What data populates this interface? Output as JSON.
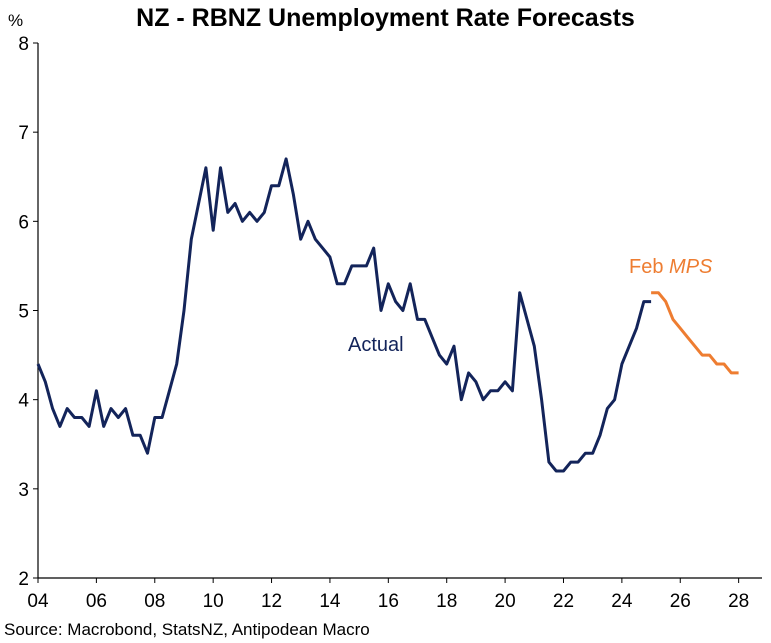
{
  "chart_data": {
    "type": "line",
    "title": "NZ - RBNZ Unemployment Rate Forecasts",
    "ylabel": "%",
    "xlabel": "",
    "ylim": [
      2,
      8
    ],
    "xlim": [
      2004,
      2028.8
    ],
    "y_ticks": [
      "2",
      "3",
      "4",
      "5",
      "6",
      "7",
      "8"
    ],
    "x_ticks": [
      "04",
      "06",
      "08",
      "10",
      "12",
      "14",
      "16",
      "18",
      "20",
      "22",
      "24",
      "26",
      "28"
    ],
    "grid": false,
    "series": [
      {
        "name": "Actual",
        "color": "#13245a",
        "x": [
          2004.0,
          2004.25,
          2004.5,
          2004.75,
          2005.0,
          2005.25,
          2005.5,
          2005.75,
          2006.0,
          2006.25,
          2006.5,
          2006.75,
          2007.0,
          2007.25,
          2007.5,
          2007.75,
          2008.0,
          2008.25,
          2008.5,
          2008.75,
          2009.0,
          2009.25,
          2009.5,
          2009.75,
          2010.0,
          2010.25,
          2010.5,
          2010.75,
          2011.0,
          2011.25,
          2011.5,
          2011.75,
          2012.0,
          2012.25,
          2012.5,
          2012.75,
          2013.0,
          2013.25,
          2013.5,
          2013.75,
          2014.0,
          2014.25,
          2014.5,
          2014.75,
          2015.0,
          2015.25,
          2015.5,
          2015.75,
          2016.0,
          2016.25,
          2016.5,
          2016.75,
          2017.0,
          2017.25,
          2017.5,
          2017.75,
          2018.0,
          2018.25,
          2018.5,
          2018.75,
          2019.0,
          2019.25,
          2019.5,
          2019.75,
          2020.0,
          2020.25,
          2020.5,
          2020.75,
          2021.0,
          2021.25,
          2021.5,
          2021.75,
          2022.0,
          2022.25,
          2022.5,
          2022.75,
          2023.0,
          2023.25,
          2023.5,
          2023.75,
          2024.0,
          2024.25,
          2024.5,
          2024.75,
          2025.0
        ],
        "values": [
          4.4,
          4.2,
          3.9,
          3.7,
          3.9,
          3.8,
          3.8,
          3.7,
          4.1,
          3.7,
          3.9,
          3.8,
          3.9,
          3.6,
          3.6,
          3.4,
          3.8,
          3.8,
          4.1,
          4.4,
          5.0,
          5.8,
          6.2,
          6.6,
          5.9,
          6.6,
          6.1,
          6.2,
          6.0,
          6.1,
          6.0,
          6.1,
          6.4,
          6.4,
          6.7,
          6.3,
          5.8,
          6.0,
          5.8,
          5.7,
          5.6,
          5.3,
          5.3,
          5.5,
          5.5,
          5.5,
          5.7,
          5.0,
          5.3,
          5.1,
          5.0,
          5.3,
          4.9,
          4.9,
          4.7,
          4.5,
          4.4,
          4.6,
          4.0,
          4.3,
          4.2,
          4.0,
          4.1,
          4.1,
          4.2,
          4.1,
          5.2,
          4.9,
          4.6,
          4.0,
          3.3,
          3.2,
          3.2,
          3.3,
          3.3,
          3.4,
          3.4,
          3.6,
          3.9,
          4.0,
          4.4,
          4.6,
          4.8,
          5.1,
          5.1
        ]
      },
      {
        "name": "Feb MPS",
        "color": "#ee7d31",
        "x": [
          2025.0,
          2025.25,
          2025.5,
          2025.75,
          2026.0,
          2026.25,
          2026.5,
          2026.75,
          2027.0,
          2027.25,
          2027.5,
          2027.75,
          2028.0
        ],
        "values": [
          5.2,
          5.2,
          5.1,
          4.9,
          4.8,
          4.7,
          4.6,
          4.5,
          4.5,
          4.4,
          4.4,
          4.3,
          4.3
        ]
      }
    ],
    "annotations": [
      {
        "text": "Actual",
        "color": "#13245a"
      },
      {
        "text_plain": "Feb ",
        "text_italic": "MPS",
        "color": "#ee7d31"
      }
    ],
    "source": "Source: Macrobond, StatsNZ, Antipodean Macro"
  }
}
